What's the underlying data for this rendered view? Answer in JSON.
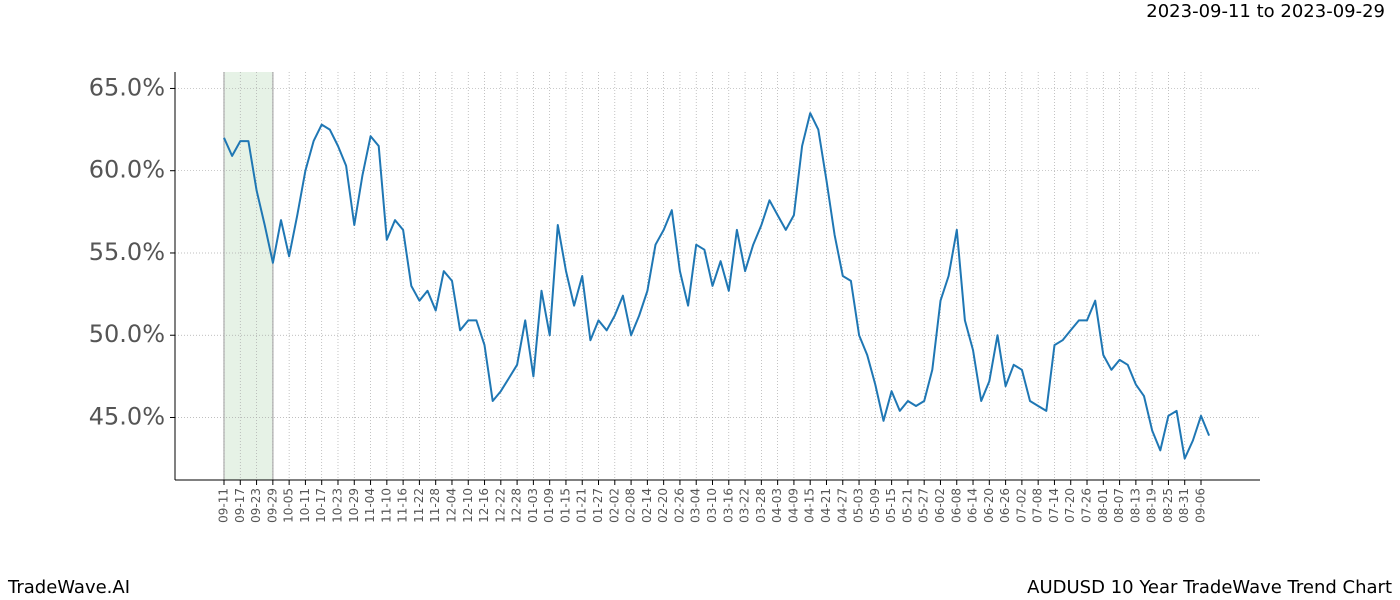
{
  "chart_data": {
    "type": "line",
    "title": "AUDUSD 10 Year TradeWave Trend Chart",
    "subtitle": "2023-09-11 to 2023-09-29",
    "brand": "TradeWave.AI",
    "categories": [
      "09-11",
      null,
      "09-17",
      null,
      "09-23",
      null,
      "09-29",
      null,
      "10-05",
      null,
      "10-11",
      null,
      "10-17",
      null,
      "10-23",
      null,
      "10-29",
      null,
      "11-04",
      null,
      "11-10",
      null,
      "11-16",
      null,
      "11-22",
      null,
      "11-28",
      null,
      "12-04",
      null,
      "12-10",
      null,
      "12-16",
      null,
      "12-22",
      null,
      "12-28",
      null,
      "01-03",
      null,
      "01-09",
      null,
      "01-15",
      null,
      "01-21",
      null,
      "01-27",
      null,
      "02-02",
      null,
      "02-08",
      null,
      "02-14",
      null,
      "02-20",
      null,
      "02-26",
      null,
      "03-04",
      null,
      "03-10",
      null,
      "03-16",
      null,
      "03-22",
      null,
      "03-28",
      null,
      "04-03",
      null,
      "04-09",
      null,
      "04-15",
      null,
      "04-21",
      null,
      "04-27",
      null,
      "05-03",
      null,
      "05-09",
      null,
      "05-15",
      null,
      "05-21",
      null,
      "05-27",
      null,
      "06-02",
      null,
      "06-08",
      null,
      "06-14",
      null,
      "06-20",
      null,
      "06-26",
      null,
      "07-02",
      null,
      "07-08",
      null,
      "07-14",
      null,
      "07-20",
      null,
      "07-26",
      null,
      "08-01",
      null,
      "08-07",
      null,
      "08-13",
      null,
      "08-19",
      null,
      "08-25",
      null,
      "08-31",
      null,
      "09-06",
      null
    ],
    "values": [
      62.0,
      60.9,
      61.8,
      61.8,
      58.8,
      56.7,
      54.4,
      57.0,
      54.8,
      57.3,
      60.0,
      61.8,
      62.8,
      62.5,
      61.5,
      60.3,
      56.7,
      59.7,
      62.1,
      61.5,
      55.8,
      57.0,
      56.4,
      53.0,
      52.1,
      52.7,
      51.5,
      53.9,
      53.3,
      50.3,
      50.9,
      50.9,
      49.4,
      46.0,
      46.6,
      47.4,
      48.2,
      50.9,
      47.5,
      52.7,
      50.0,
      56.7,
      53.9,
      51.8,
      53.6,
      49.7,
      50.9,
      50.3,
      51.2,
      52.4,
      50.0,
      51.2,
      52.7,
      55.5,
      56.4,
      57.6,
      53.9,
      51.8,
      55.5,
      55.2,
      53.0,
      54.5,
      52.7,
      56.4,
      53.9,
      55.5,
      56.7,
      58.2,
      57.3,
      56.4,
      57.3,
      61.5,
      63.5,
      62.5,
      59.4,
      56.1,
      53.6,
      53.3,
      50.0,
      48.8,
      47.0,
      44.8,
      46.6,
      45.4,
      46.0,
      45.7,
      46.0,
      47.9,
      52.1,
      53.6,
      56.4,
      50.9,
      49.1,
      46.0,
      47.2,
      50.0,
      46.9,
      48.2,
      47.9,
      46.0,
      45.7,
      45.4,
      49.4,
      49.7,
      50.3,
      50.9,
      50.9,
      52.1,
      48.8,
      47.9,
      48.5,
      48.2,
      47.0,
      46.3,
      44.2,
      43.0,
      45.1,
      45.4,
      42.5,
      43.6,
      45.1,
      43.9
    ],
    "color": "#1f77b4",
    "highlight": {
      "from": "09-11",
      "to": "09-29",
      "color": "#e6f2e6"
    },
    "ylim": [
      41.2,
      66.0
    ],
    "yticks": [
      {
        "value": 45,
        "label": "45.0%"
      },
      {
        "value": 50,
        "label": "50.0%"
      },
      {
        "value": 55,
        "label": "55.0%"
      },
      {
        "value": 60,
        "label": "60.0%"
      },
      {
        "value": 65,
        "label": "65.0%"
      }
    ],
    "grid": true
  }
}
